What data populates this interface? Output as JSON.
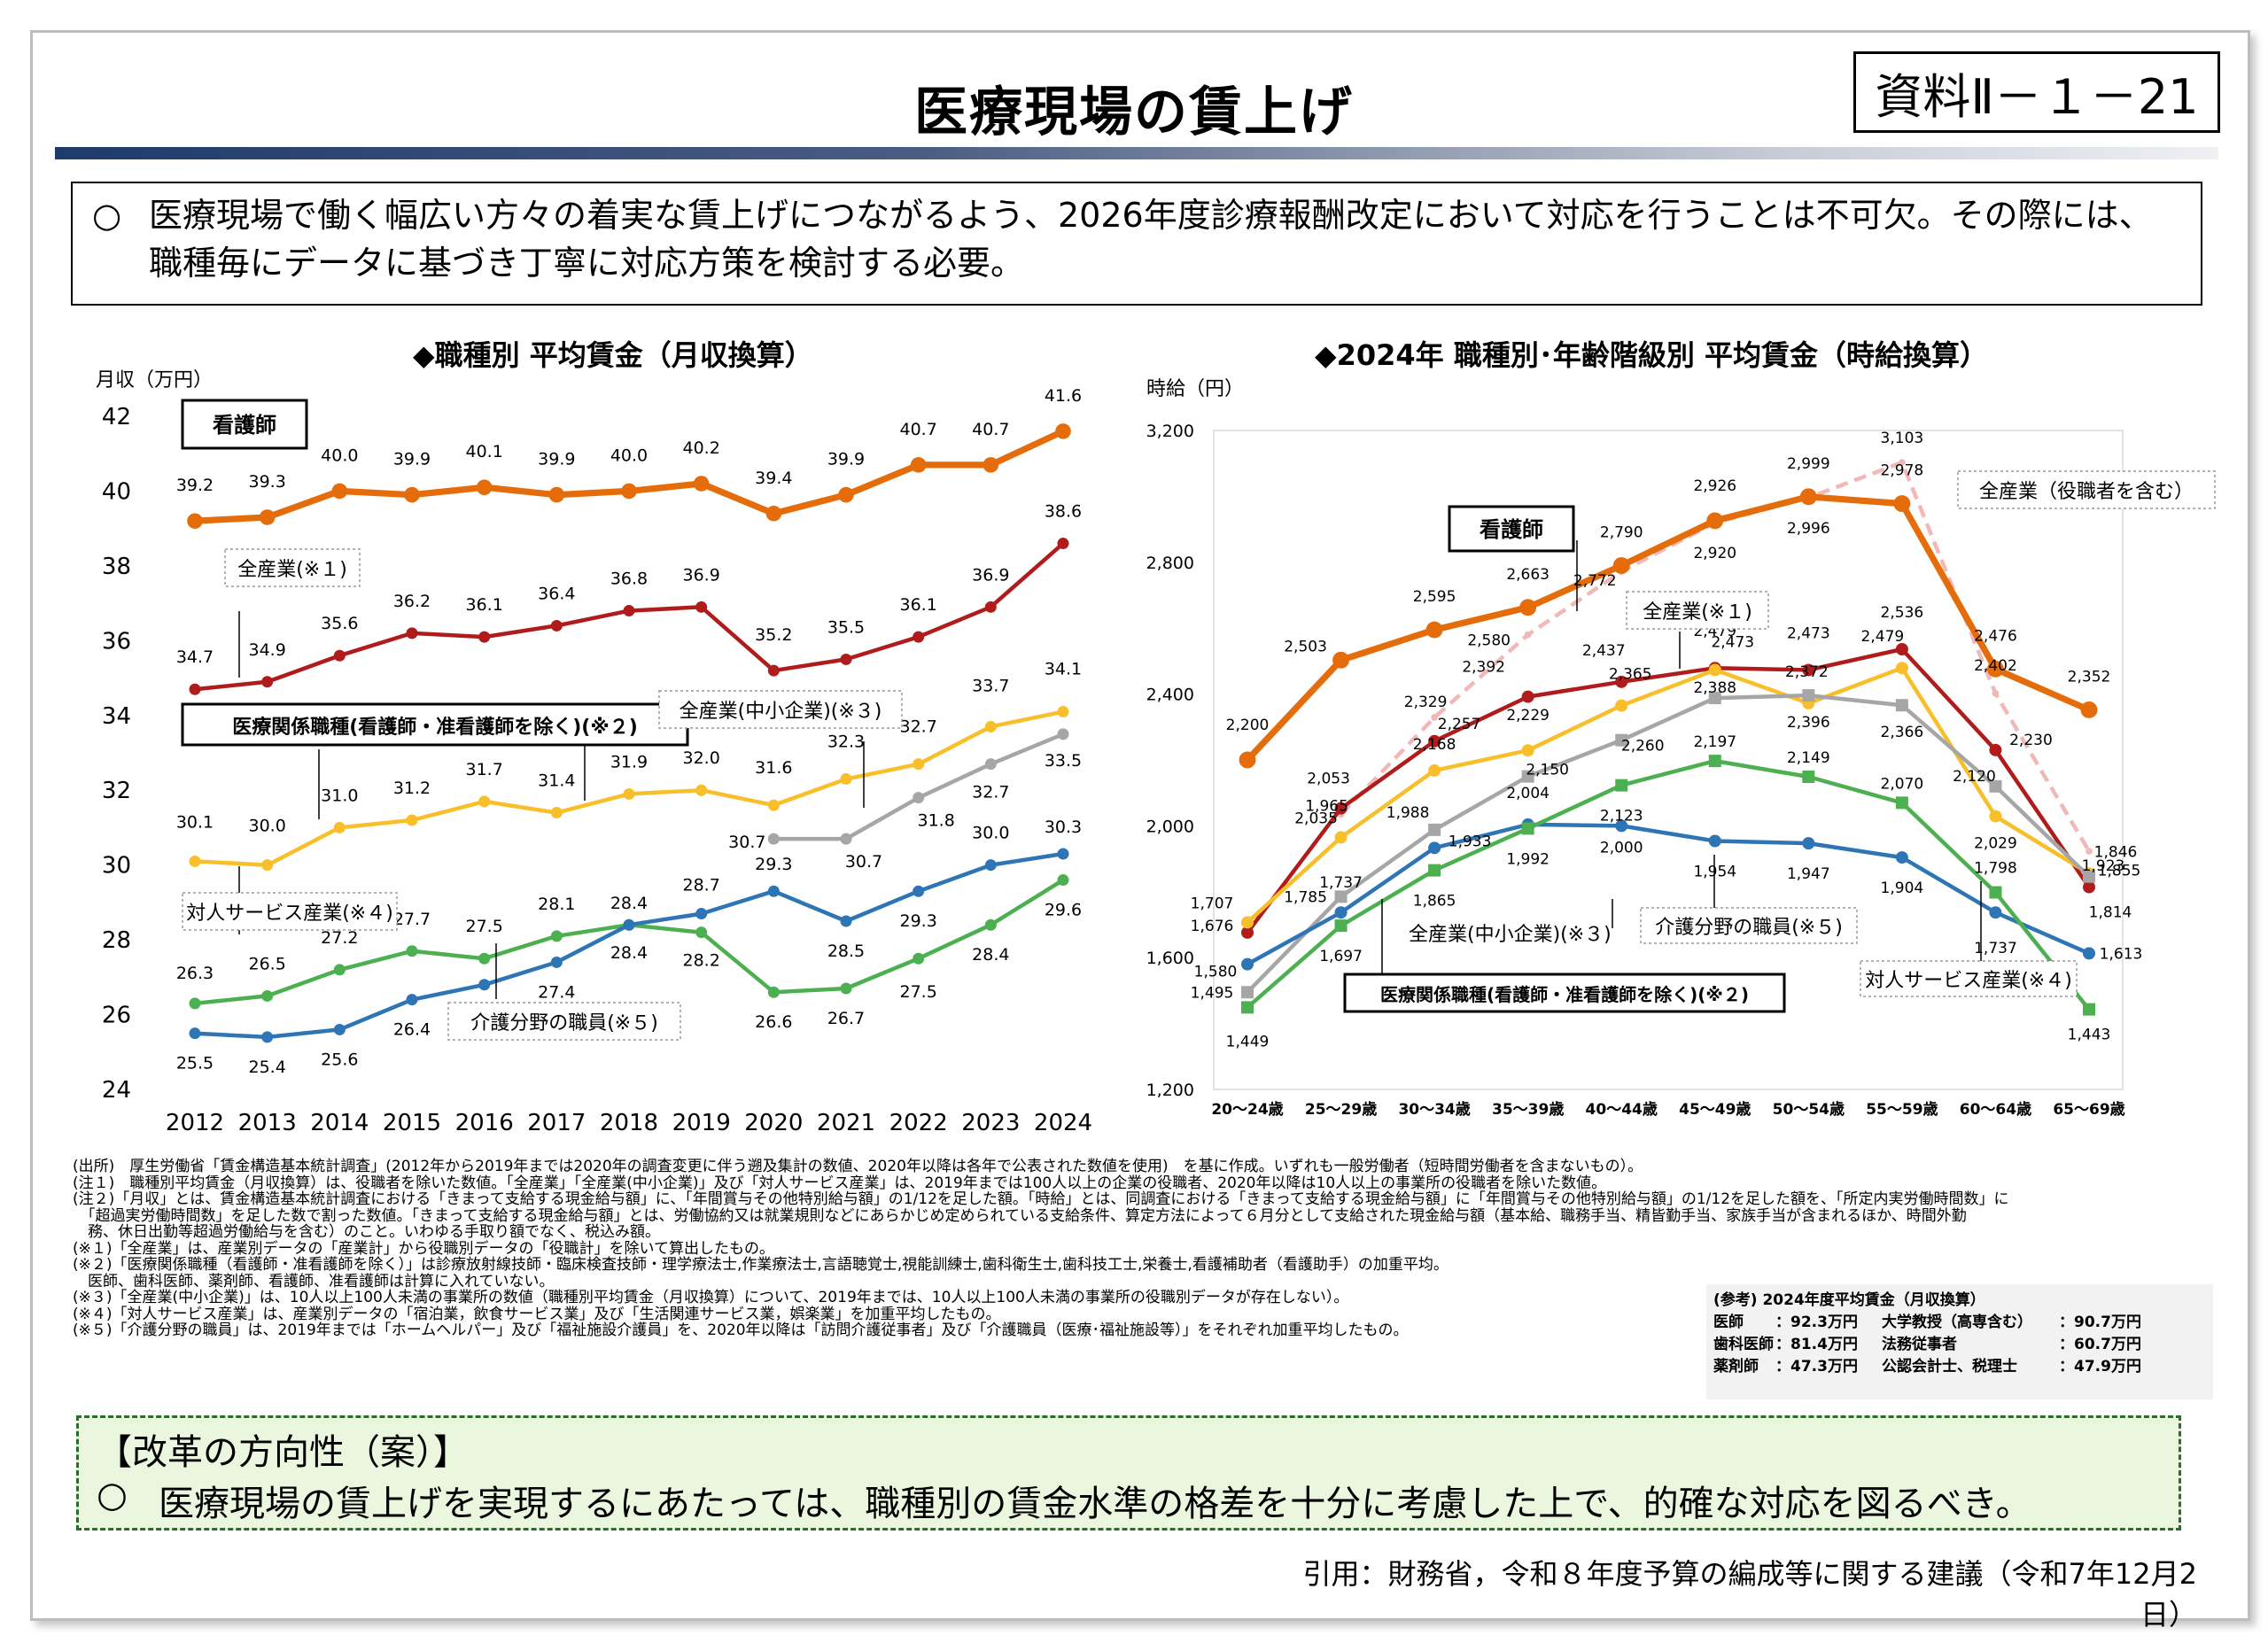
{
  "header": {
    "title": "医療現場の賃上げ",
    "doc_id": "資料Ⅱ－１－21"
  },
  "intro": {
    "bullet": "○",
    "text": "医療現場で働く幅広い方々の着実な賃上げにつながるよう、2026年度診療報酬改定において対応を行うことは不可欠。その際には、職種毎にデータに基づき丁寧に対応方策を検討する必要。"
  },
  "chart_data": [
    {
      "type": "line",
      "title": "◆職種別 平均賃金（月収換算）",
      "ylabel": "月収（万円）",
      "xlabel": "",
      "ylim": [
        24,
        42
      ],
      "yticks": [
        24,
        26,
        28,
        30,
        32,
        34,
        36,
        38,
        40,
        42
      ],
      "categories": [
        "2012",
        "2013",
        "2014",
        "2015",
        "2016",
        "2017",
        "2018",
        "2019",
        "2020",
        "2021",
        "2022",
        "2023",
        "2024"
      ],
      "series": [
        {
          "name": "看護師",
          "color": "#e46c0a",
          "values": [
            39.2,
            39.3,
            40.0,
            39.9,
            40.1,
            39.9,
            40.0,
            40.2,
            39.4,
            39.9,
            40.7,
            40.7,
            41.6
          ]
        },
        {
          "name": "全産業(※１)",
          "color": "#b01c1c",
          "values": [
            34.7,
            34.9,
            35.6,
            36.2,
            36.1,
            36.4,
            36.8,
            36.9,
            35.2,
            35.5,
            36.1,
            36.9,
            38.6
          ]
        },
        {
          "name": "医療関係職種(看護師・准看護師を除く)(※２)",
          "color": "#f8bf2a",
          "values": [
            30.1,
            30.0,
            31.0,
            31.2,
            31.7,
            31.4,
            31.9,
            32.0,
            31.6,
            32.3,
            32.7,
            33.7,
            34.1
          ]
        },
        {
          "name": "全産業(中小企業)(※３)",
          "color": "#a6a6a6",
          "values": [
            null,
            null,
            null,
            null,
            null,
            null,
            null,
            null,
            30.7,
            30.7,
            31.8,
            32.7,
            33.5
          ]
        },
        {
          "name": "対人サービス産業(※４)",
          "color": "#4caf50",
          "values": [
            26.3,
            26.5,
            27.2,
            27.7,
            27.5,
            28.1,
            28.4,
            28.2,
            26.6,
            26.7,
            27.5,
            28.4,
            29.6
          ]
        },
        {
          "name": "介護分野の職員(※５)",
          "color": "#2e75b6",
          "values": [
            25.5,
            25.4,
            25.6,
            26.4,
            26.8,
            27.4,
            28.4,
            28.7,
            29.3,
            28.5,
            29.3,
            30.0,
            30.3
          ]
        }
      ],
      "labels": {
        "nurse": "看護師",
        "all_industry": "全産業(※１)",
        "medical": "医療関係職種(看護師・准看護師を除く)(※２)",
        "sme": "全産業(中小企業)(※３)",
        "personal_service": "対人サービス産業(※４)",
        "care": "介護分野の職員(※５)"
      }
    },
    {
      "type": "line",
      "title": "◆2024年 職種別･年齢階級別 平均賃金（時給換算）",
      "ylabel": "時給（円）",
      "xlabel": "",
      "ylim": [
        1200,
        3200
      ],
      "yticks": [
        1200,
        1600,
        2000,
        2400,
        2800,
        3200
      ],
      "ytick_labels": [
        "1,200",
        "1,600",
        "2,000",
        "2,400",
        "2,800",
        "3,200"
      ],
      "categories": [
        "20～24歳",
        "25～29歳",
        "30～34歳",
        "35～39歳",
        "40～44歳",
        "45～49歳",
        "50～54歳",
        "55～59歳",
        "60～64歳",
        "65～69歳"
      ],
      "series": [
        {
          "name": "全産業（役職者を含む）",
          "color": "#f2b8b8",
          "dashed": true,
          "values": [
            null,
            2035,
            2329,
            2580,
            2772,
            2920,
            2996,
            3103,
            2402,
            1923
          ]
        },
        {
          "name": "看護師",
          "color": "#e46c0a",
          "values": [
            2200,
            2503,
            2595,
            2663,
            2790,
            2926,
            2999,
            2978,
            2476,
            2352
          ]
        },
        {
          "name": "全産業(※１)",
          "color": "#b01c1c",
          "values": [
            1676,
            2053,
            2257,
            2392,
            2437,
            2479,
            2473,
            2536,
            2230,
            1814
          ]
        },
        {
          "name": "医療関係職種(看護師・准看護師を除く)(※２)",
          "color": "#f8bf2a",
          "values": [
            1707,
            1965,
            2168,
            2229,
            2365,
            2473,
            2372,
            2479,
            2029,
            1855
          ]
        },
        {
          "name": "全産業(中小企業)(※３)",
          "color": "#a6a6a6",
          "values": [
            1495,
            1785,
            1988,
            2150,
            2260,
            2388,
            2396,
            2366,
            2120,
            1846
          ]
        },
        {
          "name": "介護分野の職員(※５)",
          "color": "#2e75b6",
          "values": [
            1580,
            1737,
            1933,
            2004,
            2000,
            1954,
            1947,
            1904,
            1737,
            1613
          ]
        },
        {
          "name": "対人サービス産業(※４)",
          "color": "#4caf50",
          "values": [
            1449,
            1697,
            1865,
            1992,
            2123,
            2197,
            2149,
            2070,
            1798,
            1443
          ]
        }
      ],
      "labels": {
        "all_industry_exec": "全産業（役職者を含む）",
        "nurse": "看護師",
        "all_industry": "全産業(※１)",
        "sme": "全産業(中小企業)(※３)",
        "care": "介護分野の職員(※５)",
        "personal_service": "対人サービス産業(※４)",
        "medical": "医療関係職種(看護師・准看護師を除く)(※２)"
      }
    }
  ],
  "notes": [
    "(出所)　厚生労働省「賃金構造基本統計調査」(2012年から2019年までは2020年の調査変更に伴う遡及集計の数値、2020年以降は各年で公表された数値を使用)　を基に作成。いずれも一般労働者（短時間労働者を含まないもの）。",
    "(注１)　職種別平均賃金（月収換算）は、役職者を除いた数値。「全産業」「全産業(中小企業)」及び「対人サービス産業」は、2019年までは100人以上の企業の役職者、2020年以降は10人以上の事業所の役職者を除いた数値。",
    "(注２)「月収」とは、賃金構造基本統計調査における「きまって支給する現金給与額」に、「年間賞与その他特別給与額」の1/12を足した額。「時給」とは、同調査における「きまって支給する現金給与額」に「年間賞与その他特別給与額」の1/12を足した額を、「所定内実労働時間数」に",
    "　「超過実労働時間数」を足した数で割った数値。「きまって支給する現金給与額」とは、労働協約又は就業規則などにあらかじめ定められている支給条件、算定方法によって６月分として支給された現金給与額（基本給、職務手当、精皆勤手当、家族手当が含まれるほか、時間外勤",
    "　務、休日出勤等超過労働給与を含む）のこと。いわゆる手取り額でなく、税込み額。",
    "(※１)「全産業」は、産業別データの「産業計」から役職別データの「役職計」を除いて算出したもの。",
    "(※２)「医療関係職種（看護師・准看護師を除く）」は診療放射線技師・臨床検査技師・理学療法士,作業療法士,言語聴覚士,視能訓練士,歯科衛生士,歯科技工士,栄養士,看護補助者（看護助手）の加重平均。",
    "　医師、歯科医師、薬剤師、看護師、准看護師は計算に入れていない。",
    "(※３)「全産業(中小企業)」は、10人以上100人未満の事業所の数値（職種別平均賃金（月収換算）について、2019年までは、10人以上100人未満の事業所の役職別データが存在しない）。",
    "(※４)「対人サービス産業」は、産業別データの「宿泊業，飲食サービス業」及び「生活関連サービス業，娯楽業」を加重平均したもの。",
    "(※５)「介護分野の職員」は、2019年までは「ホームヘルパー」及び「福祉施設介護員」を、2020年以降は「訪問介護従事者」及び「介護職員（医療･福祉施設等）」をそれぞれ加重平均したもの。"
  ],
  "reference": {
    "title": "(参考) 2024年度平均賃金（月収換算）",
    "rows": [
      {
        "left_label": "医師",
        "left_value": "：92.3万円",
        "right_label": "大学教授（高専含む）",
        "right_value": "：90.7万円"
      },
      {
        "left_label": "歯科医師",
        "left_value": "：81.4万円",
        "right_label": "法務従事者",
        "right_value": "：60.7万円"
      },
      {
        "left_label": "薬剤師",
        "left_value": "：47.3万円",
        "right_label": "公認会計士、税理士",
        "right_value": "：47.9万円"
      }
    ]
  },
  "reform": {
    "heading": "【改革の方向性（案）】",
    "bullet": "○",
    "text": "医療現場の賃上げを実現するにあたっては、職種別の賃金水準の格差を十分に考慮した上で、的確な対応を図るべき。"
  },
  "citation": "引用：財務省，令和８年度予算の編成等に関する建議（令和7年12月2日）"
}
